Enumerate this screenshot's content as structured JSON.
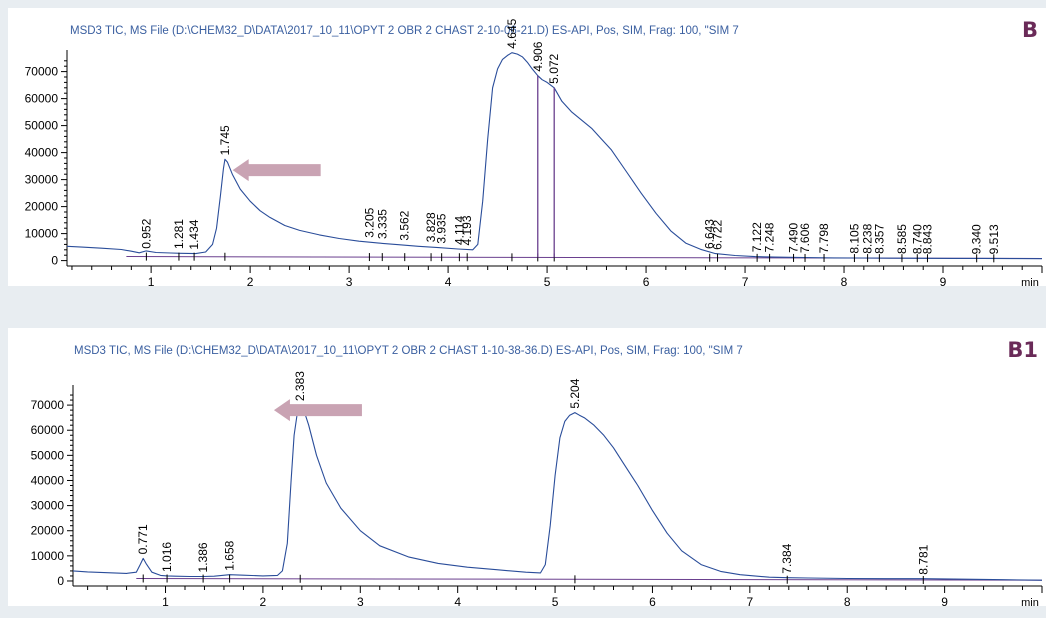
{
  "colors": {
    "page_bg": "#e8edf1",
    "trace": "#2a4d9a",
    "baseline": "#6a3f8e",
    "axis": "#000000",
    "title_text": "#3a5fa0",
    "tag_text": "#6a2a58",
    "arrow": "#c9a3b3"
  },
  "chart_data": [
    {
      "type": "line",
      "panel_tag": "B",
      "title": "MSD3 TIC, MS File (D:\\CHEM32_D\\DATA\\2017_10_11\\OPYT 2 OBR 2 CHAST 2-10-06-21.D)     ES-API, Pos, SIM, Frag: 100, \"SIM 7",
      "xunit": "min",
      "xlim": [
        0.15,
        10.0
      ],
      "ylim": [
        -2000,
        78000
      ],
      "xticks": [
        1,
        2,
        3,
        4,
        5,
        6,
        7,
        8,
        9
      ],
      "yticks": [
        0,
        10000,
        20000,
        30000,
        40000,
        50000,
        60000,
        70000
      ],
      "arrow_annotation": {
        "x": 2.45,
        "y": 33500,
        "points_to": "1.745"
      },
      "baseline": [
        [
          0.75,
          1500
        ],
        [
          10.0,
          800
        ]
      ],
      "series": [
        {
          "x": [
            0.15,
            0.3,
            0.5,
            0.7,
            0.8,
            0.88,
            0.95,
            1.05,
            1.2,
            1.3,
            1.45,
            1.55,
            1.62,
            1.66,
            1.7,
            1.73,
            1.745,
            1.77,
            1.82,
            1.9,
            2.0,
            2.1,
            2.2,
            2.35,
            2.5,
            2.7,
            2.9,
            3.1,
            3.3,
            3.5,
            3.7,
            3.9,
            4.1,
            4.25,
            4.3,
            4.35,
            4.4,
            4.45,
            4.5,
            4.55,
            4.6,
            4.645,
            4.7,
            4.75,
            4.8,
            4.85,
            4.906,
            4.95,
            5.0,
            5.072,
            5.15,
            5.25,
            5.35,
            5.45,
            5.55,
            5.65,
            5.8,
            5.95,
            6.1,
            6.25,
            6.4,
            6.55,
            6.7,
            6.9,
            7.1,
            7.3,
            7.6,
            7.9,
            8.2,
            8.5,
            8.8,
            9.1,
            9.4,
            9.7,
            10.0
          ],
          "y": [
            5300,
            5000,
            4600,
            4100,
            3500,
            2900,
            3600,
            3000,
            2800,
            2700,
            2600,
            3200,
            6000,
            12000,
            24000,
            34000,
            37500,
            36500,
            32000,
            26500,
            22000,
            18500,
            16000,
            13000,
            11200,
            9500,
            8200,
            7200,
            6500,
            5900,
            5300,
            4800,
            4300,
            4000,
            6000,
            22000,
            45000,
            64000,
            71000,
            74500,
            76000,
            77000,
            76500,
            75500,
            73500,
            71000,
            68500,
            67000,
            66000,
            64000,
            59000,
            55000,
            52000,
            49000,
            45000,
            41000,
            33000,
            25000,
            17500,
            11000,
            6500,
            4200,
            2600,
            1900,
            1500,
            1300,
            1150,
            1000,
            950,
            900,
            850,
            800,
            800,
            750,
            700
          ]
        }
      ],
      "peak_labels": [
        {
          "x": 0.952,
          "y": 2900,
          "label": "0.952",
          "line_to_base": false
        },
        {
          "x": 1.281,
          "y": 2800,
          "label": "1.281",
          "line_to_base": false
        },
        {
          "x": 1.434,
          "y": 2600,
          "label": "1.434",
          "line_to_base": false
        },
        {
          "x": 1.745,
          "y": 37500,
          "label": "1.745",
          "line_to_base": false
        },
        {
          "x": 3.205,
          "y": 7000,
          "label": "3.205",
          "line_to_base": false
        },
        {
          "x": 3.335,
          "y": 6500,
          "label": "3.335",
          "line_to_base": false
        },
        {
          "x": 3.562,
          "y": 5900,
          "label": "3.562",
          "line_to_base": false
        },
        {
          "x": 3.828,
          "y": 5300,
          "label": "3.828",
          "line_to_base": false
        },
        {
          "x": 3.935,
          "y": 4800,
          "label": "3.935",
          "line_to_base": false
        },
        {
          "x": 4.114,
          "y": 4300,
          "label": "4.114",
          "line_to_base": false
        },
        {
          "x": 4.193,
          "y": 4100,
          "label": "4.193",
          "line_to_base": false
        },
        {
          "x": 4.645,
          "y": 77000,
          "label": "4.645",
          "line_to_base": false
        },
        {
          "x": 4.906,
          "y": 68500,
          "label": "4.906",
          "line_to_base": true
        },
        {
          "x": 5.072,
          "y": 64000,
          "label": "5.072",
          "line_to_base": true
        },
        {
          "x": 6.643,
          "y": 2800,
          "label": "6.643",
          "line_to_base": false
        },
        {
          "x": 6.722,
          "y": 2500,
          "label": "6.722",
          "line_to_base": false
        },
        {
          "x": 7.122,
          "y": 1600,
          "label": "7.122",
          "line_to_base": false
        },
        {
          "x": 7.248,
          "y": 1500,
          "label": "7.248",
          "line_to_base": false
        },
        {
          "x": 7.49,
          "y": 1400,
          "label": "7.490",
          "line_to_base": false
        },
        {
          "x": 7.606,
          "y": 1300,
          "label": "7.606",
          "line_to_base": false
        },
        {
          "x": 7.798,
          "y": 1200,
          "label": "7.798",
          "line_to_base": false
        },
        {
          "x": 8.105,
          "y": 1100,
          "label": "8.105",
          "line_to_base": false
        },
        {
          "x": 8.238,
          "y": 1050,
          "label": "8.238",
          "line_to_base": false
        },
        {
          "x": 8.357,
          "y": 1000,
          "label": "8.357",
          "line_to_base": false
        },
        {
          "x": 8.585,
          "y": 950,
          "label": "8.585",
          "line_to_base": false
        },
        {
          "x": 8.74,
          "y": 900,
          "label": "8.740",
          "line_to_base": false
        },
        {
          "x": 8.843,
          "y": 900,
          "label": "8.843",
          "line_to_base": false
        },
        {
          "x": 9.34,
          "y": 850,
          "label": "9.340",
          "line_to_base": false
        },
        {
          "x": 9.513,
          "y": 800,
          "label": "9.513",
          "line_to_base": false
        }
      ]
    },
    {
      "type": "line",
      "panel_tag": "B1",
      "title": "MSD3 TIC, MS File (D:\\CHEM32_D\\DATA\\2017_10_11\\OPYT 2 OBR 2 CHAST 1-10-38-36.D)     ES-API, Pos, SIM, Frag: 100, \"SIM 7",
      "xunit": "min",
      "xlim": [
        0.05,
        10.0
      ],
      "ylim": [
        -2000,
        78000
      ],
      "xticks": [
        1,
        2,
        3,
        4,
        5,
        6,
        7,
        8,
        9
      ],
      "yticks": [
        0,
        10000,
        20000,
        30000,
        40000,
        50000,
        60000,
        70000
      ],
      "arrow_annotation": {
        "x": 2.75,
        "y": 68000,
        "points_to": "2.383"
      },
      "baseline": [
        [
          0.7,
          1000
        ],
        [
          10.0,
          300
        ]
      ],
      "series": [
        {
          "x": [
            0.05,
            0.2,
            0.4,
            0.6,
            0.7,
            0.74,
            0.771,
            0.8,
            0.86,
            0.95,
            1.016,
            1.1,
            1.25,
            1.386,
            1.5,
            1.658,
            1.8,
            2.0,
            2.15,
            2.2,
            2.25,
            2.29,
            2.32,
            2.35,
            2.383,
            2.42,
            2.47,
            2.55,
            2.65,
            2.8,
            3.0,
            3.2,
            3.5,
            3.8,
            4.1,
            4.4,
            4.7,
            4.85,
            4.9,
            4.95,
            5.0,
            5.05,
            5.1,
            5.15,
            5.204,
            5.25,
            5.3,
            5.4,
            5.5,
            5.6,
            5.7,
            5.85,
            6.0,
            6.15,
            6.3,
            6.5,
            6.7,
            6.9,
            7.2,
            7.384,
            7.6,
            8.0,
            8.4,
            8.781,
            9.2,
            9.6,
            10.0
          ],
          "y": [
            4000,
            3600,
            3300,
            3000,
            3500,
            6500,
            9000,
            7000,
            3500,
            2200,
            2000,
            1900,
            1800,
            1800,
            1900,
            2500,
            2300,
            2000,
            2200,
            4000,
            15000,
            40000,
            58000,
            66000,
            70000,
            68000,
            62000,
            50000,
            39000,
            29000,
            20000,
            14000,
            9500,
            7000,
            5500,
            4500,
            3500,
            3200,
            6500,
            22000,
            42000,
            57000,
            63500,
            66000,
            67000,
            66000,
            65000,
            62000,
            58000,
            53000,
            47000,
            38000,
            28000,
            19000,
            12000,
            6500,
            3800,
            2500,
            1500,
            1300,
            1200,
            1000,
            900,
            900,
            700,
            500,
            300
          ]
        }
      ],
      "peak_labels": [
        {
          "x": 0.771,
          "y": 9000,
          "label": "0.771",
          "line_to_base": false
        },
        {
          "x": 1.016,
          "y": 2000,
          "label": "1.016",
          "line_to_base": false
        },
        {
          "x": 1.386,
          "y": 1800,
          "label": "1.386",
          "line_to_base": false
        },
        {
          "x": 1.658,
          "y": 2500,
          "label": "1.658",
          "line_to_base": false
        },
        {
          "x": 2.383,
          "y": 70000,
          "label": "2.383",
          "line_to_base": false
        },
        {
          "x": 5.204,
          "y": 67000,
          "label": "5.204",
          "line_to_base": false
        },
        {
          "x": 7.384,
          "y": 1300,
          "label": "7.384",
          "line_to_base": false
        },
        {
          "x": 8.781,
          "y": 900,
          "label": "8.781",
          "line_to_base": false
        }
      ]
    }
  ]
}
